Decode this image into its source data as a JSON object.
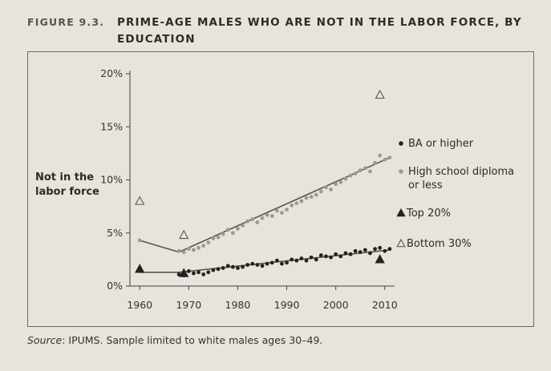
{
  "figure": {
    "number": "FIGURE 9.3.",
    "title": "PRIME-AGE MALES WHO ARE NOT IN THE LABOR FORCE, BY EDUCATION",
    "source_label": "Source",
    "source_text": ": IPUMS. Sample limited to white males ages 30–49."
  },
  "colors": {
    "ba": "#222222",
    "hs": "#9a9a9a",
    "line": "#555555",
    "axis": "#444444"
  },
  "chart_data": {
    "type": "scatter",
    "title": "PRIME-AGE MALES WHO ARE NOT IN THE LABOR FORCE, BY EDUCATION",
    "ylabel": "Not in the labor force",
    "xlabel": "",
    "xlim": [
      1958,
      2012
    ],
    "ylim": [
      0,
      20
    ],
    "x_ticks": [
      1960,
      1970,
      1980,
      1990,
      2000,
      2010
    ],
    "y_ticks": [
      0,
      5,
      10,
      15,
      20
    ],
    "y_tick_labels": [
      "0%",
      "5%",
      "10%",
      "15%",
      "20%"
    ],
    "legend": [
      {
        "label": "BA or higher",
        "marker": "dot-dark"
      },
      {
        "label": "High school diploma or less",
        "marker": "dot-gray"
      },
      {
        "label": "Top 20%",
        "marker": "triangle-filled"
      },
      {
        "label": "Bottom 30%",
        "marker": "triangle-open"
      }
    ],
    "series": [
      {
        "name": "BA or higher",
        "points": [
          [
            1960,
            1.5
          ],
          [
            1968,
            1.1
          ],
          [
            1969,
            1.0
          ],
          [
            1970,
            1.4
          ],
          [
            1971,
            1.2
          ],
          [
            1972,
            1.3
          ],
          [
            1973,
            1.1
          ],
          [
            1974,
            1.3
          ],
          [
            1975,
            1.5
          ],
          [
            1976,
            1.6
          ],
          [
            1977,
            1.7
          ],
          [
            1978,
            1.9
          ],
          [
            1979,
            1.8
          ],
          [
            1980,
            1.7
          ],
          [
            1981,
            1.8
          ],
          [
            1982,
            2.0
          ],
          [
            1983,
            2.1
          ],
          [
            1984,
            2.0
          ],
          [
            1985,
            1.9
          ],
          [
            1986,
            2.1
          ],
          [
            1987,
            2.2
          ],
          [
            1988,
            2.4
          ],
          [
            1989,
            2.1
          ],
          [
            1990,
            2.2
          ],
          [
            1991,
            2.5
          ],
          [
            1992,
            2.4
          ],
          [
            1993,
            2.6
          ],
          [
            1994,
            2.4
          ],
          [
            1995,
            2.7
          ],
          [
            1996,
            2.5
          ],
          [
            1997,
            2.9
          ],
          [
            1998,
            2.8
          ],
          [
            1999,
            2.7
          ],
          [
            2000,
            3.0
          ],
          [
            2001,
            2.8
          ],
          [
            2002,
            3.1
          ],
          [
            2003,
            3.0
          ],
          [
            2004,
            3.3
          ],
          [
            2005,
            3.2
          ],
          [
            2006,
            3.4
          ],
          [
            2007,
            3.1
          ],
          [
            2008,
            3.5
          ],
          [
            2009,
            3.6
          ],
          [
            2010,
            3.3
          ],
          [
            2011,
            3.5
          ]
        ],
        "trend": [
          [
            1960,
            1.3
          ],
          [
            1968,
            1.3
          ],
          [
            2011,
            3.4
          ]
        ]
      },
      {
        "name": "High school diploma or less",
        "points": [
          [
            1960,
            4.3
          ],
          [
            1968,
            3.3
          ],
          [
            1969,
            3.2
          ],
          [
            1970,
            3.5
          ],
          [
            1971,
            3.4
          ],
          [
            1972,
            3.6
          ],
          [
            1973,
            3.8
          ],
          [
            1974,
            4.1
          ],
          [
            1975,
            4.5
          ],
          [
            1976,
            4.6
          ],
          [
            1977,
            4.9
          ],
          [
            1978,
            5.3
          ],
          [
            1979,
            5.0
          ],
          [
            1980,
            5.4
          ],
          [
            1981,
            5.7
          ],
          [
            1982,
            6.1
          ],
          [
            1983,
            6.3
          ],
          [
            1984,
            6.0
          ],
          [
            1985,
            6.4
          ],
          [
            1986,
            6.7
          ],
          [
            1987,
            6.6
          ],
          [
            1988,
            7.1
          ],
          [
            1989,
            6.9
          ],
          [
            1990,
            7.2
          ],
          [
            1991,
            7.6
          ],
          [
            1992,
            7.8
          ],
          [
            1993,
            8.0
          ],
          [
            1994,
            8.3
          ],
          [
            1995,
            8.4
          ],
          [
            1996,
            8.6
          ],
          [
            1997,
            8.9
          ],
          [
            1998,
            9.3
          ],
          [
            1999,
            9.1
          ],
          [
            2000,
            9.6
          ],
          [
            2001,
            9.8
          ],
          [
            2002,
            10.1
          ],
          [
            2003,
            10.4
          ],
          [
            2004,
            10.6
          ],
          [
            2005,
            10.9
          ],
          [
            2006,
            11.1
          ],
          [
            2007,
            10.8
          ],
          [
            2008,
            11.6
          ],
          [
            2009,
            12.3
          ],
          [
            2010,
            11.9
          ],
          [
            2011,
            12.1
          ]
        ],
        "trend": [
          [
            1960,
            4.3
          ],
          [
            1968,
            3.2
          ],
          [
            2011,
            12.1
          ]
        ]
      },
      {
        "name": "Top 20%",
        "points": [
          [
            1960,
            1.6
          ],
          [
            1969,
            1.2
          ],
          [
            2009,
            2.5
          ]
        ]
      },
      {
        "name": "Bottom 30%",
        "points": [
          [
            1960,
            8.0
          ],
          [
            1969,
            4.8
          ],
          [
            2009,
            18.0
          ]
        ]
      }
    ]
  }
}
